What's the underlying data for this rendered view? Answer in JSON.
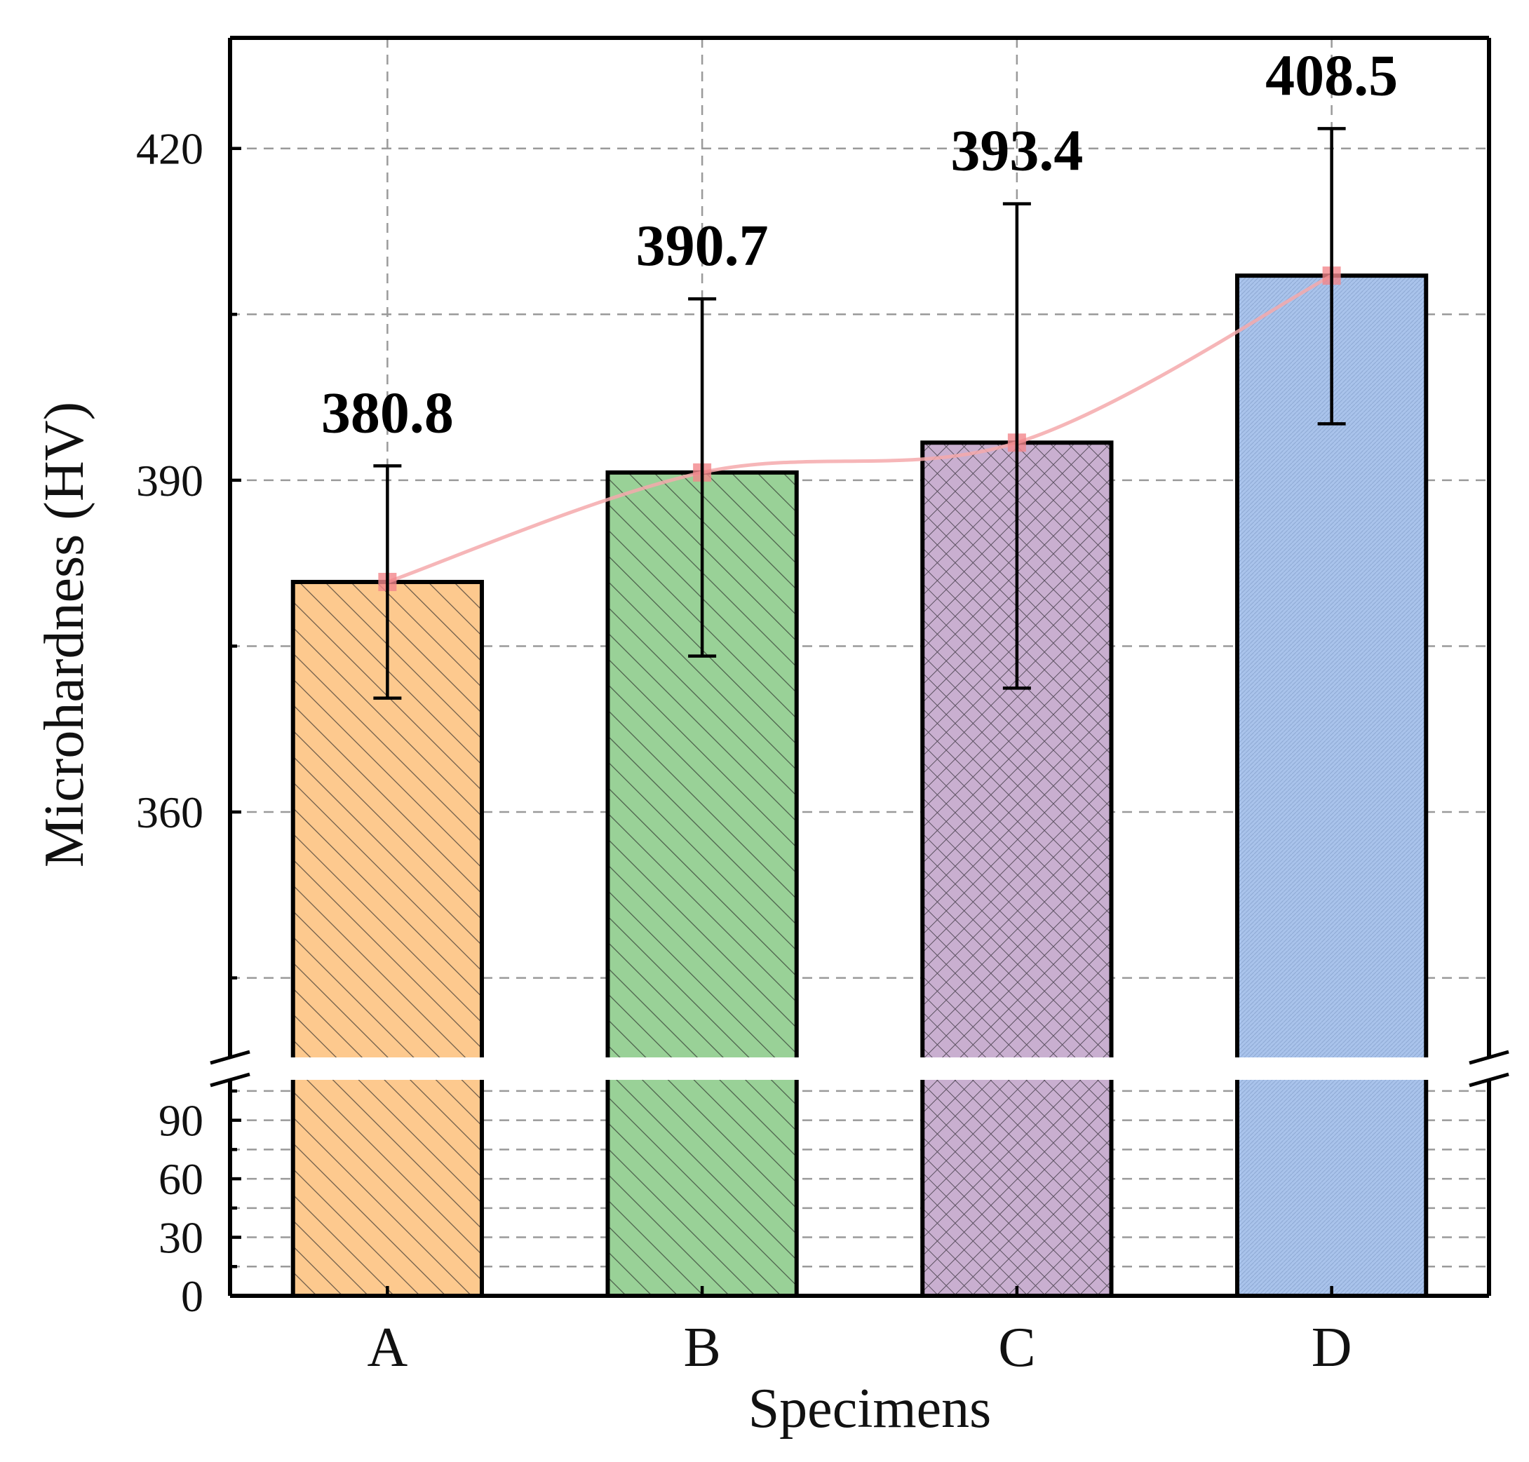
{
  "chart_data": {
    "type": "bar",
    "ylabel": "Microhardness (HV)",
    "xlabel": "Specimens",
    "categories": [
      "A",
      "B",
      "C",
      "D"
    ],
    "values": [
      380.8,
      390.7,
      393.4,
      408.5
    ],
    "value_labels": [
      "380.8",
      "390.7",
      "393.4",
      "408.5"
    ],
    "error_bars": {
      "lower": [
        370.3,
        374.1,
        371.2,
        395.1
      ],
      "upper": [
        391.3,
        406.4,
        415.0,
        421.8
      ]
    },
    "bar_colors": [
      "#fdc98e",
      "#99d197",
      "#c9afd0",
      "#a9c3eb"
    ],
    "bar_hatch": [
      "diagonal",
      "diagonal",
      "crosshatch",
      "dense"
    ],
    "trend_line": {
      "color": "#f4a9ac",
      "marker_color": "#f2868b",
      "smooth": true
    },
    "y_axis_broken": true,
    "lower_segment": {
      "ylim": [
        0,
        110
      ],
      "ticks": [
        0,
        30,
        60,
        90
      ],
      "tick_labels": [
        "0",
        "30",
        "60",
        "90"
      ]
    },
    "upper_segment": {
      "ylim": [
        338,
        430
      ],
      "ticks": [
        360,
        390,
        420
      ],
      "tick_labels": [
        "360",
        "390",
        "420"
      ],
      "minor_ticks": [
        345,
        375,
        405
      ]
    },
    "grid": true
  }
}
